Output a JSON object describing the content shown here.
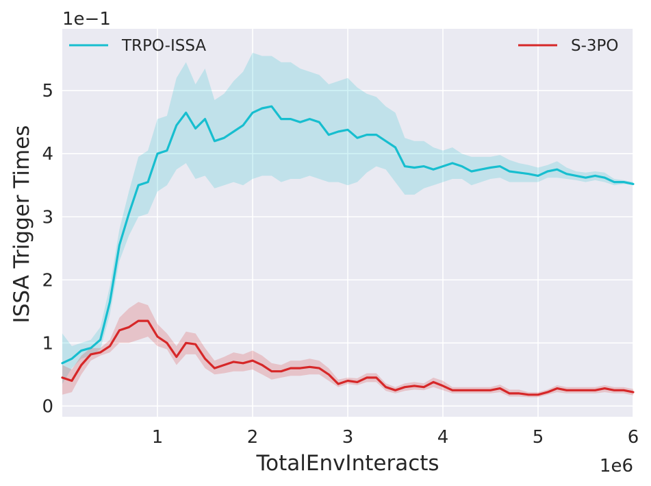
{
  "chart_data": {
    "type": "line",
    "xlabel": "TotalEnvInteracts",
    "ylabel": "ISSA Trigger Times",
    "x_offset_label": "1e6",
    "y_offset_label": "1e−1",
    "xlim": [
      0.0,
      6.0
    ],
    "ylim": [
      -0.17,
      5.98
    ],
    "x_ticks": [
      1,
      2,
      3,
      4,
      5,
      6
    ],
    "x_tick_labels": [
      "1",
      "2",
      "3",
      "4",
      "5",
      "6"
    ],
    "y_ticks": [
      0,
      1,
      2,
      3,
      4,
      5
    ],
    "y_tick_labels": [
      "0",
      "1",
      "2",
      "3",
      "4",
      "5"
    ],
    "grid": true,
    "background": "#eaeaf2",
    "legend": [
      {
        "label": "TRPO-ISSA",
        "color": "#17becf",
        "position": "top-left"
      },
      {
        "label": "S-3PO",
        "color": "#d62728",
        "position": "top-right"
      }
    ],
    "series": [
      {
        "name": "TRPO-ISSA",
        "color": "#17becf",
        "x": [
          0.0,
          0.1,
          0.2,
          0.3,
          0.4,
          0.5,
          0.6,
          0.7,
          0.8,
          0.9,
          1.0,
          1.1,
          1.2,
          1.3,
          1.4,
          1.5,
          1.6,
          1.7,
          1.8,
          1.9,
          2.0,
          2.1,
          2.2,
          2.3,
          2.4,
          2.5,
          2.6,
          2.7,
          2.8,
          2.9,
          3.0,
          3.1,
          3.2,
          3.3,
          3.4,
          3.5,
          3.6,
          3.7,
          3.8,
          3.9,
          4.0,
          4.1,
          4.2,
          4.3,
          4.4,
          4.5,
          4.6,
          4.7,
          4.8,
          4.9,
          5.0,
          5.1,
          5.2,
          5.3,
          5.4,
          5.5,
          5.6,
          5.7,
          5.8,
          5.9,
          6.0
        ],
        "y": [
          0.68,
          0.75,
          0.88,
          0.92,
          1.05,
          1.65,
          2.55,
          3.05,
          3.5,
          3.55,
          4.0,
          4.05,
          4.45,
          4.65,
          4.4,
          4.55,
          4.2,
          4.25,
          4.35,
          4.45,
          4.65,
          4.72,
          4.75,
          4.55,
          4.55,
          4.5,
          4.55,
          4.5,
          4.3,
          4.35,
          4.38,
          4.25,
          4.3,
          4.3,
          4.2,
          4.1,
          3.8,
          3.78,
          3.8,
          3.75,
          3.8,
          3.85,
          3.8,
          3.72,
          3.75,
          3.78,
          3.8,
          3.72,
          3.7,
          3.68,
          3.65,
          3.72,
          3.75,
          3.68,
          3.65,
          3.62,
          3.65,
          3.62,
          3.55,
          3.55,
          3.52
        ],
        "lower": [
          0.35,
          0.6,
          0.75,
          0.8,
          0.9,
          1.45,
          2.3,
          2.7,
          3.0,
          3.05,
          3.4,
          3.5,
          3.75,
          3.85,
          3.6,
          3.65,
          3.45,
          3.5,
          3.55,
          3.5,
          3.6,
          3.65,
          3.65,
          3.55,
          3.6,
          3.6,
          3.65,
          3.6,
          3.55,
          3.55,
          3.5,
          3.55,
          3.7,
          3.8,
          3.75,
          3.55,
          3.35,
          3.35,
          3.45,
          3.5,
          3.55,
          3.6,
          3.6,
          3.5,
          3.55,
          3.6,
          3.62,
          3.55,
          3.55,
          3.55,
          3.55,
          3.62,
          3.62,
          3.6,
          3.58,
          3.55,
          3.58,
          3.55,
          3.5,
          3.52,
          3.5
        ],
        "upper": [
          1.15,
          0.95,
          1.0,
          1.05,
          1.25,
          1.9,
          2.8,
          3.4,
          3.95,
          4.05,
          4.55,
          4.6,
          5.2,
          5.45,
          5.1,
          5.35,
          4.85,
          4.95,
          5.15,
          5.3,
          5.6,
          5.55,
          5.55,
          5.45,
          5.45,
          5.35,
          5.3,
          5.25,
          5.1,
          5.15,
          5.2,
          5.05,
          4.95,
          4.9,
          4.75,
          4.65,
          4.25,
          4.2,
          4.2,
          4.1,
          4.05,
          4.1,
          4.0,
          3.95,
          3.95,
          3.95,
          3.98,
          3.9,
          3.85,
          3.82,
          3.78,
          3.82,
          3.88,
          3.78,
          3.72,
          3.7,
          3.72,
          3.7,
          3.6,
          3.58,
          3.55
        ]
      },
      {
        "name": "S-3PO",
        "color": "#d62728",
        "x": [
          0.0,
          0.1,
          0.2,
          0.3,
          0.4,
          0.5,
          0.6,
          0.7,
          0.8,
          0.9,
          1.0,
          1.1,
          1.2,
          1.3,
          1.4,
          1.5,
          1.6,
          1.7,
          1.8,
          1.9,
          2.0,
          2.1,
          2.2,
          2.3,
          2.4,
          2.5,
          2.6,
          2.7,
          2.8,
          2.9,
          3.0,
          3.1,
          3.2,
          3.3,
          3.4,
          3.5,
          3.6,
          3.7,
          3.8,
          3.9,
          4.0,
          4.1,
          4.2,
          4.3,
          4.4,
          4.5,
          4.6,
          4.7,
          4.8,
          4.9,
          5.0,
          5.1,
          5.2,
          5.3,
          5.4,
          5.5,
          5.6,
          5.7,
          5.8,
          5.9,
          6.0
        ],
        "y": [
          0.45,
          0.4,
          0.65,
          0.82,
          0.85,
          0.95,
          1.2,
          1.25,
          1.35,
          1.35,
          1.1,
          1.0,
          0.78,
          1.0,
          0.98,
          0.75,
          0.6,
          0.65,
          0.7,
          0.68,
          0.72,
          0.65,
          0.55,
          0.55,
          0.6,
          0.6,
          0.62,
          0.6,
          0.5,
          0.35,
          0.4,
          0.38,
          0.45,
          0.45,
          0.3,
          0.25,
          0.3,
          0.32,
          0.3,
          0.38,
          0.32,
          0.25,
          0.25,
          0.25,
          0.25,
          0.25,
          0.28,
          0.2,
          0.2,
          0.18,
          0.18,
          0.22,
          0.28,
          0.25,
          0.25,
          0.25,
          0.25,
          0.28,
          0.25,
          0.25,
          0.22
        ],
        "lower": [
          0.18,
          0.22,
          0.5,
          0.72,
          0.8,
          0.85,
          1.0,
          1.0,
          1.05,
          1.1,
          0.95,
          0.9,
          0.65,
          0.82,
          0.82,
          0.6,
          0.5,
          0.52,
          0.55,
          0.55,
          0.58,
          0.5,
          0.42,
          0.45,
          0.48,
          0.48,
          0.5,
          0.5,
          0.4,
          0.3,
          0.35,
          0.33,
          0.38,
          0.38,
          0.24,
          0.2,
          0.24,
          0.26,
          0.25,
          0.3,
          0.25,
          0.2,
          0.2,
          0.2,
          0.2,
          0.2,
          0.22,
          0.15,
          0.15,
          0.14,
          0.14,
          0.18,
          0.22,
          0.2,
          0.2,
          0.2,
          0.2,
          0.22,
          0.2,
          0.2,
          0.17
        ],
        "upper": [
          0.65,
          0.58,
          0.8,
          0.92,
          0.92,
          1.05,
          1.4,
          1.55,
          1.65,
          1.6,
          1.3,
          1.15,
          0.95,
          1.18,
          1.15,
          0.92,
          0.72,
          0.78,
          0.85,
          0.82,
          0.88,
          0.8,
          0.68,
          0.65,
          0.72,
          0.72,
          0.75,
          0.72,
          0.6,
          0.42,
          0.45,
          0.44,
          0.52,
          0.52,
          0.36,
          0.3,
          0.36,
          0.38,
          0.36,
          0.45,
          0.4,
          0.3,
          0.3,
          0.3,
          0.3,
          0.3,
          0.34,
          0.26,
          0.26,
          0.22,
          0.22,
          0.26,
          0.33,
          0.3,
          0.3,
          0.3,
          0.3,
          0.33,
          0.3,
          0.3,
          0.27
        ]
      }
    ]
  }
}
